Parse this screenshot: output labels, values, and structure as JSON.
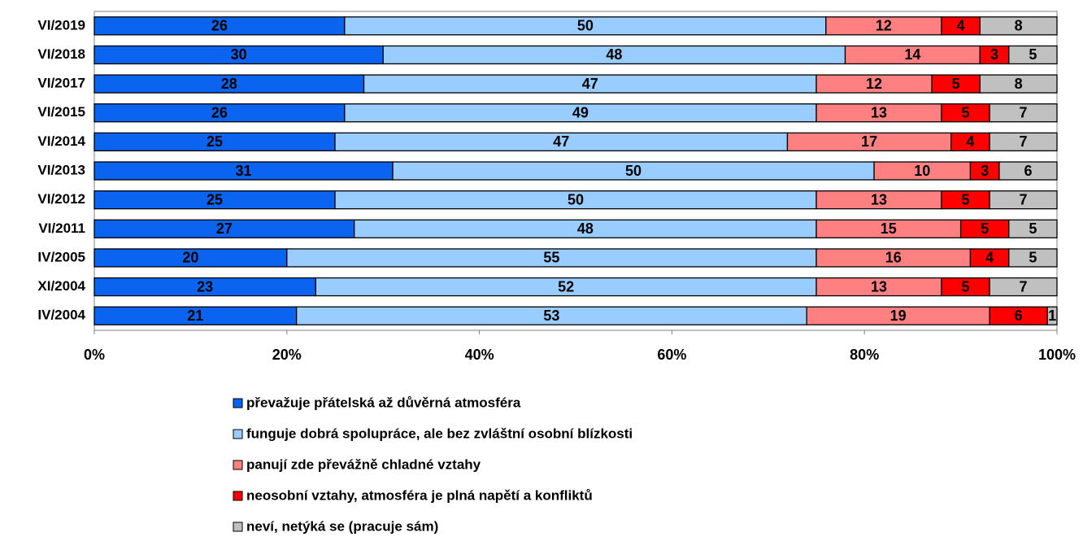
{
  "chart_data": {
    "type": "stacked_bar_horizontal",
    "categories": [
      "VI/2019",
      "VI/2018",
      "VI/2017",
      "VI/2015",
      "VI/2014",
      "VI/2013",
      "VI/2012",
      "VI/2011",
      "IV/2005",
      "XI/2004",
      "IV/2004"
    ],
    "series": [
      {
        "name": "převažuje přátelská až důvěrná atmosféra",
        "color": "#0a64f0",
        "values": [
          26,
          30,
          28,
          26,
          25,
          31,
          25,
          27,
          20,
          23,
          21
        ]
      },
      {
        "name": "funguje dobrá spolupráce, ale bez zvláštní osobní blízkosti",
        "color": "#99ccff",
        "values": [
          50,
          48,
          47,
          49,
          47,
          50,
          50,
          48,
          55,
          52,
          53
        ]
      },
      {
        "name": "panují zde převážně chladné vztahy",
        "color": "#ff8080",
        "values": [
          12,
          14,
          12,
          13,
          17,
          10,
          13,
          15,
          16,
          13,
          19
        ]
      },
      {
        "name": "neosobní vztahy, atmosféra je plná napětí a konfliktů",
        "color": "#ff0000",
        "values": [
          4,
          3,
          5,
          5,
          4,
          3,
          5,
          5,
          4,
          5,
          6
        ]
      },
      {
        "name": "neví, netýká se (pracuje sám)",
        "color": "#c0c0c0",
        "values": [
          8,
          5,
          8,
          7,
          7,
          6,
          7,
          5,
          5,
          7,
          1
        ]
      }
    ],
    "xlim": [
      0,
      100
    ],
    "xticks": [
      {
        "value": 0,
        "label": "0%"
      },
      {
        "value": 20,
        "label": "20%"
      },
      {
        "value": 40,
        "label": "40%"
      },
      {
        "value": 60,
        "label": "60%"
      },
      {
        "value": 80,
        "label": "80%"
      },
      {
        "value": 100,
        "label": "100%"
      }
    ],
    "legend": "bottom"
  }
}
